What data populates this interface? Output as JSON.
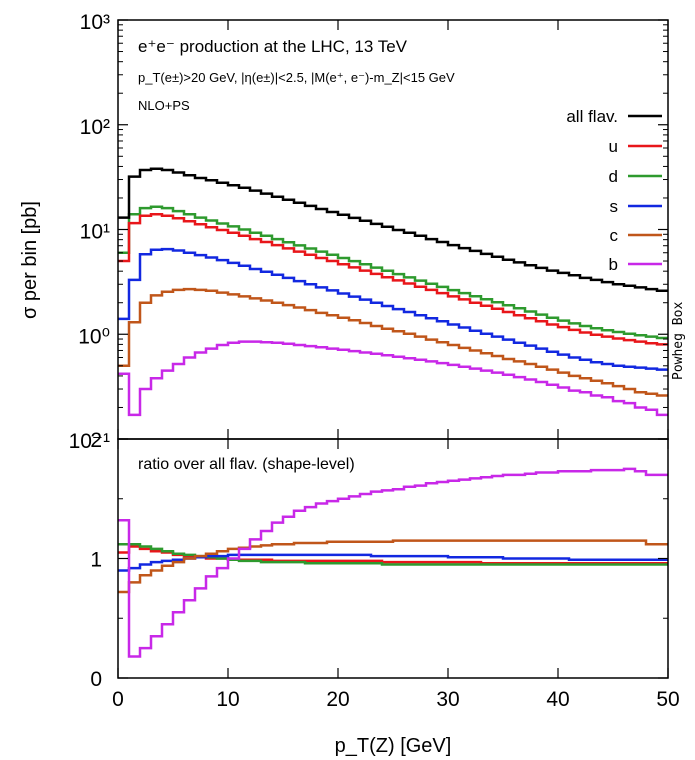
{
  "chart_data": [
    {
      "type": "line",
      "step": true,
      "title": "e⁺e⁻ production at the LHC, 13 TeV",
      "subtitle": "p_T(e±)>20 GeV, |η(e±)|<2.5, |M(e⁺, e⁻)-m_Z|<15 GeV",
      "note": "NLO+PS",
      "watermark": "Powheg Box",
      "xlabel": "",
      "ylabel": "σ per bin [pb]",
      "yscale": "log",
      "xlim": [
        0,
        50
      ],
      "ylim": [
        0.1,
        1000
      ],
      "ytick_labels": [
        "10⁻¹",
        "10⁰",
        "10¹",
        "10²",
        "10³"
      ],
      "legend_position": "top-right",
      "bin_width": 1,
      "x": [
        0,
        1,
        2,
        3,
        4,
        5,
        6,
        7,
        8,
        9,
        10,
        11,
        12,
        13,
        14,
        15,
        16,
        17,
        18,
        19,
        20,
        21,
        22,
        23,
        24,
        25,
        26,
        27,
        28,
        29,
        30,
        31,
        32,
        33,
        34,
        35,
        36,
        37,
        38,
        39,
        40,
        41,
        42,
        43,
        44,
        45,
        46,
        47,
        48,
        49
      ],
      "series": [
        {
          "name": "all flav.",
          "color": "#000000",
          "values": [
            13.0,
            32.0,
            37.0,
            38.0,
            37.0,
            35.0,
            33.0,
            31.0,
            29.5,
            28.0,
            26.5,
            25.0,
            23.5,
            22.0,
            20.5,
            19.2,
            18.0,
            16.8,
            15.7,
            14.7,
            13.8,
            12.9,
            12.1,
            11.3,
            10.6,
            9.9,
            9.3,
            8.7,
            8.1,
            7.6,
            7.1,
            6.65,
            6.25,
            5.85,
            5.5,
            5.15,
            4.85,
            4.55,
            4.3,
            4.05,
            3.85,
            3.65,
            3.45,
            3.3,
            3.15,
            3.0,
            2.9,
            2.8,
            2.7,
            2.6
          ]
        },
        {
          "name": "u",
          "color": "#e8161a",
          "values": [
            5.0,
            11.5,
            13.5,
            14.0,
            13.5,
            12.8,
            12.0,
            11.2,
            10.5,
            9.9,
            9.3,
            8.7,
            8.1,
            7.6,
            7.1,
            6.6,
            6.15,
            5.75,
            5.35,
            5.0,
            4.65,
            4.35,
            4.05,
            3.77,
            3.5,
            3.27,
            3.05,
            2.84,
            2.65,
            2.47,
            2.3,
            2.15,
            2.0,
            1.87,
            1.75,
            1.63,
            1.52,
            1.42,
            1.33,
            1.24,
            1.17,
            1.1,
            1.04,
            0.99,
            0.95,
            0.91,
            0.88,
            0.85,
            0.82,
            0.8
          ]
        },
        {
          "name": "d",
          "color": "#2e9a2e",
          "values": [
            6.0,
            14.0,
            16.0,
            16.5,
            16.0,
            15.0,
            14.0,
            13.0,
            12.2,
            11.4,
            10.7,
            10.0,
            9.3,
            8.7,
            8.1,
            7.55,
            7.05,
            6.58,
            6.15,
            5.75,
            5.35,
            4.99,
            4.65,
            4.33,
            4.03,
            3.75,
            3.49,
            3.25,
            3.03,
            2.83,
            2.64,
            2.47,
            2.31,
            2.16,
            2.02,
            1.89,
            1.77,
            1.65,
            1.54,
            1.44,
            1.35,
            1.27,
            1.2,
            1.14,
            1.09,
            1.05,
            1.01,
            0.98,
            0.95,
            0.92
          ]
        },
        {
          "name": "s",
          "color": "#1228e0",
          "values": [
            1.4,
            3.3,
            5.8,
            6.4,
            6.5,
            6.3,
            6.0,
            5.7,
            5.4,
            5.1,
            4.8,
            4.5,
            4.2,
            3.95,
            3.7,
            3.45,
            3.22,
            3.0,
            2.8,
            2.62,
            2.45,
            2.29,
            2.14,
            2.0,
            1.86,
            1.74,
            1.63,
            1.52,
            1.42,
            1.33,
            1.24,
            1.16,
            1.08,
            1.01,
            0.95,
            0.89,
            0.83,
            0.78,
            0.73,
            0.68,
            0.64,
            0.6,
            0.57,
            0.54,
            0.52,
            0.5,
            0.49,
            0.48,
            0.47,
            0.46
          ]
        },
        {
          "name": "c",
          "color": "#c0561a",
          "values": [
            0.5,
            1.3,
            2.0,
            2.35,
            2.55,
            2.65,
            2.7,
            2.65,
            2.6,
            2.5,
            2.4,
            2.3,
            2.2,
            2.1,
            2.0,
            1.9,
            1.8,
            1.7,
            1.6,
            1.52,
            1.44,
            1.36,
            1.28,
            1.2,
            1.13,
            1.07,
            1.01,
            0.95,
            0.89,
            0.84,
            0.79,
            0.74,
            0.7,
            0.66,
            0.62,
            0.58,
            0.55,
            0.52,
            0.49,
            0.46,
            0.43,
            0.4,
            0.38,
            0.36,
            0.34,
            0.32,
            0.3,
            0.28,
            0.27,
            0.26
          ]
        },
        {
          "name": "b",
          "color": "#c828e8",
          "values": [
            0.42,
            0.17,
            0.3,
            0.38,
            0.45,
            0.52,
            0.6,
            0.67,
            0.73,
            0.79,
            0.83,
            0.85,
            0.85,
            0.84,
            0.83,
            0.81,
            0.79,
            0.77,
            0.75,
            0.73,
            0.71,
            0.69,
            0.67,
            0.65,
            0.63,
            0.61,
            0.59,
            0.57,
            0.55,
            0.53,
            0.51,
            0.49,
            0.47,
            0.45,
            0.43,
            0.41,
            0.39,
            0.37,
            0.35,
            0.33,
            0.31,
            0.29,
            0.28,
            0.26,
            0.25,
            0.23,
            0.22,
            0.2,
            0.19,
            0.17
          ]
        }
      ]
    },
    {
      "type": "line",
      "step": true,
      "annotation": "ratio over all flav. (shape-level)",
      "xlabel": "p_T(Z) [GeV]",
      "ylabel": "",
      "xlim": [
        0,
        50
      ],
      "ylim": [
        0,
        2
      ],
      "xticks": [
        0,
        10,
        20,
        30,
        40,
        50
      ],
      "yticks": [
        0,
        1,
        2
      ],
      "bin_width": 1,
      "x": [
        0,
        1,
        2,
        3,
        4,
        5,
        6,
        7,
        8,
        9,
        10,
        11,
        12,
        13,
        14,
        15,
        16,
        17,
        18,
        19,
        20,
        21,
        22,
        23,
        24,
        25,
        26,
        27,
        28,
        29,
        30,
        31,
        32,
        33,
        34,
        35,
        36,
        37,
        38,
        39,
        40,
        41,
        42,
        43,
        44,
        45,
        46,
        47,
        48,
        49
      ],
      "series": [
        {
          "color": "#e8161a",
          "values": [
            1.05,
            1.1,
            1.08,
            1.06,
            1.05,
            1.03,
            1.02,
            1.01,
            1.0,
            1.0,
            0.99,
            0.99,
            0.99,
            0.99,
            0.98,
            0.98,
            0.98,
            0.98,
            0.98,
            0.98,
            0.98,
            0.98,
            0.98,
            0.98,
            0.97,
            0.97,
            0.97,
            0.97,
            0.97,
            0.97,
            0.97,
            0.97,
            0.97,
            0.96,
            0.96,
            0.96,
            0.96,
            0.96,
            0.96,
            0.96,
            0.96,
            0.96,
            0.96,
            0.96,
            0.96,
            0.96,
            0.96,
            0.96,
            0.96,
            0.96
          ]
        },
        {
          "color": "#2e9a2e",
          "values": [
            1.12,
            1.12,
            1.1,
            1.08,
            1.06,
            1.04,
            1.03,
            1.02,
            1.01,
            1.0,
            0.99,
            0.98,
            0.98,
            0.97,
            0.97,
            0.97,
            0.97,
            0.96,
            0.96,
            0.96,
            0.96,
            0.96,
            0.96,
            0.96,
            0.95,
            0.95,
            0.95,
            0.95,
            0.95,
            0.95,
            0.95,
            0.95,
            0.95,
            0.95,
            0.95,
            0.95,
            0.95,
            0.95,
            0.95,
            0.95,
            0.95,
            0.95,
            0.95,
            0.95,
            0.95,
            0.95,
            0.95,
            0.95,
            0.95,
            0.95
          ]
        },
        {
          "color": "#1228e0",
          "values": [
            0.9,
            0.92,
            0.95,
            0.97,
            0.98,
            0.99,
            1.0,
            1.01,
            1.02,
            1.02,
            1.03,
            1.03,
            1.03,
            1.03,
            1.03,
            1.03,
            1.03,
            1.03,
            1.03,
            1.03,
            1.03,
            1.03,
            1.03,
            1.02,
            1.02,
            1.02,
            1.02,
            1.02,
            1.02,
            1.02,
            1.01,
            1.01,
            1.01,
            1.01,
            1.01,
            1.0,
            1.0,
            1.0,
            1.0,
            1.0,
            1.0,
            0.99,
            0.99,
            0.99,
            0.99,
            0.99,
            0.99,
            0.99,
            0.99,
            0.99
          ]
        },
        {
          "color": "#c0561a",
          "values": [
            0.72,
            0.8,
            0.86,
            0.9,
            0.94,
            0.97,
            1.0,
            1.02,
            1.04,
            1.06,
            1.08,
            1.09,
            1.1,
            1.11,
            1.12,
            1.12,
            1.13,
            1.13,
            1.13,
            1.14,
            1.14,
            1.14,
            1.14,
            1.14,
            1.14,
            1.15,
            1.15,
            1.15,
            1.15,
            1.15,
            1.15,
            1.15,
            1.15,
            1.15,
            1.15,
            1.15,
            1.15,
            1.15,
            1.15,
            1.15,
            1.15,
            1.15,
            1.15,
            1.15,
            1.15,
            1.15,
            1.15,
            1.15,
            1.12,
            1.12
          ]
        },
        {
          "color": "#c828e8",
          "values": [
            1.32,
            0.18,
            0.25,
            0.35,
            0.45,
            0.55,
            0.65,
            0.75,
            0.85,
            0.92,
            1.0,
            1.08,
            1.16,
            1.23,
            1.3,
            1.35,
            1.4,
            1.43,
            1.46,
            1.48,
            1.5,
            1.52,
            1.54,
            1.56,
            1.57,
            1.58,
            1.6,
            1.61,
            1.63,
            1.64,
            1.65,
            1.66,
            1.67,
            1.68,
            1.69,
            1.7,
            1.7,
            1.71,
            1.72,
            1.72,
            1.73,
            1.73,
            1.73,
            1.74,
            1.74,
            1.74,
            1.75,
            1.73,
            1.7,
            1.7
          ]
        }
      ]
    }
  ]
}
